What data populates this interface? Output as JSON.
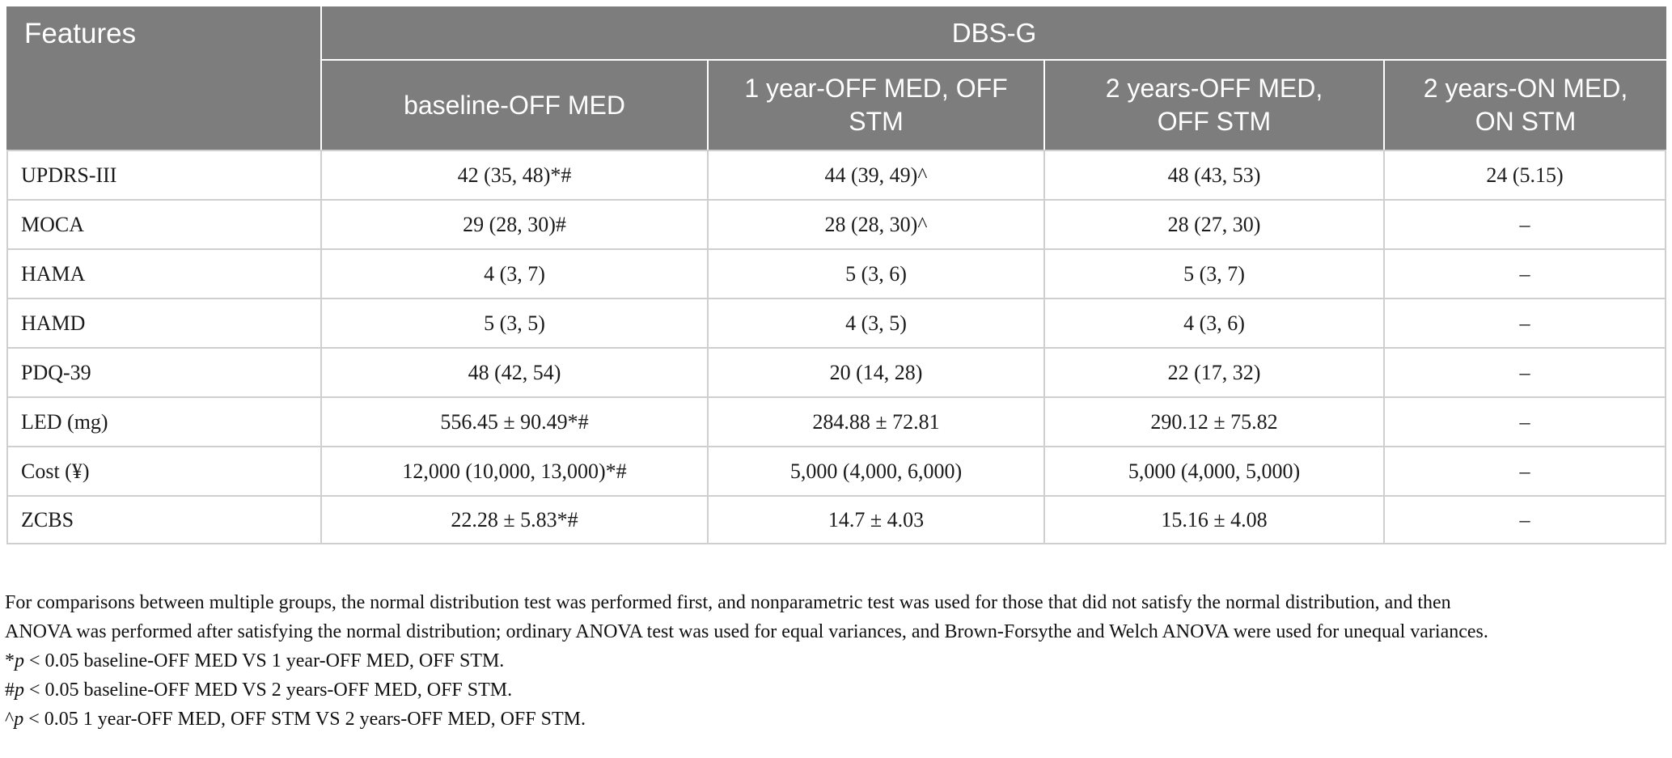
{
  "table": {
    "corner_header": "Features",
    "group_header": "DBS-G",
    "columns": [
      "baseline-OFF MED",
      "1 year-OFF MED, OFF\nSTM",
      "2 years-OFF MED,\nOFF STM",
      "2 years-ON MED,\nON STM"
    ],
    "rows": [
      {
        "label": "UPDRS-III",
        "values": [
          "42 (35, 48)*#",
          "44 (39, 49)^",
          "48 (43, 53)",
          "24 (5.15)"
        ]
      },
      {
        "label": "MOCA",
        "values": [
          "29 (28, 30)#",
          "28 (28, 30)^",
          "28 (27, 30)",
          "–"
        ]
      },
      {
        "label": "HAMA",
        "values": [
          "4 (3, 7)",
          "5 (3, 6)",
          "5 (3, 7)",
          "–"
        ]
      },
      {
        "label": "HAMD",
        "values": [
          "5 (3, 5)",
          "4 (3, 5)",
          "4 (3, 6)",
          "–"
        ]
      },
      {
        "label": "PDQ-39",
        "values": [
          "48 (42, 54)",
          "20 (14, 28)",
          "22 (17, 32)",
          "–"
        ]
      },
      {
        "label": "LED (mg)",
        "values": [
          "556.45 ± 90.49*#",
          "284.88 ± 72.81",
          "290.12 ± 75.82",
          "–"
        ]
      },
      {
        "label": "Cost (¥)",
        "values": [
          "12,000 (10,000, 13,000)*#",
          "5,000 (4,000, 6,000)",
          "5,000 (4,000, 5,000)",
          "–"
        ]
      },
      {
        "label": "ZCBS",
        "values": [
          "22.28 ± 5.83*#",
          "14.7 ± 4.03",
          "15.16 ± 4.08",
          "–"
        ]
      }
    ],
    "colors": {
      "header_background": "#7d7d7d",
      "header_text": "#ffffff",
      "grid_line": "#cfcfcf",
      "body_text": "#1a1a1a"
    }
  },
  "footnotes": {
    "general": "For comparisons between multiple groups, the normal distribution test was performed first, and nonparametric test was used for those that did not satisfy the normal distribution, and then\nANOVA was performed after satisfying the normal distribution; ordinary ANOVA test was used for equal variances, and Brown-Forsythe and Welch ANOVA were used for unequal variances.",
    "significance": [
      {
        "marker": "*",
        "p": "p",
        "condition": " < 0.05 baseline-OFF MED VS 1 year-OFF MED, OFF STM."
      },
      {
        "marker": "#",
        "p": "p",
        "condition": " < 0.05 baseline-OFF MED VS 2 years-OFF MED, OFF STM."
      },
      {
        "marker": "^",
        "p": "p",
        "condition": " < 0.05 1 year-OFF MED, OFF STM VS 2 years-OFF MED, OFF STM."
      }
    ]
  }
}
